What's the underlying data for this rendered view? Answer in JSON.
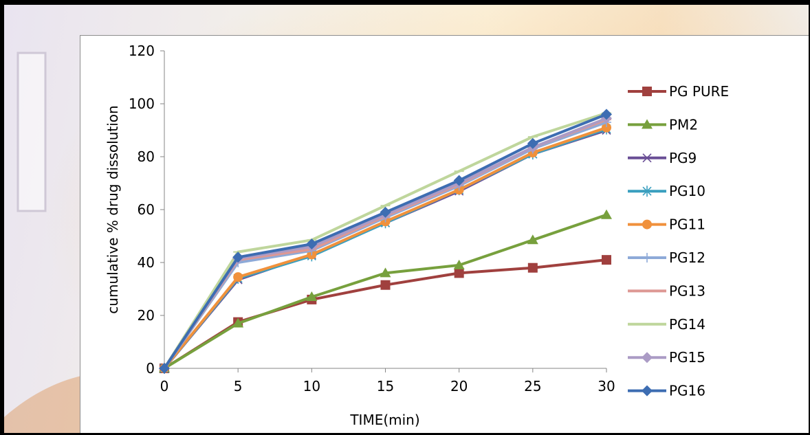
{
  "chart_data": {
    "type": "line",
    "title": "",
    "xlabel": "TIME(min)",
    "ylabel": "cumulative % drug dissolution",
    "x": [
      0,
      5,
      10,
      15,
      20,
      25,
      30
    ],
    "xlim": [
      0,
      30
    ],
    "ylim": [
      0,
      120
    ],
    "x_ticks": [
      0,
      5,
      10,
      15,
      20,
      25,
      30
    ],
    "y_ticks": [
      0,
      20,
      40,
      60,
      80,
      100,
      120
    ],
    "grid": false,
    "legend_position": "right",
    "series": [
      {
        "name": "PG PURE",
        "color": "#a0403e",
        "marker": "square",
        "values": [
          0,
          17.5,
          26,
          31.5,
          36,
          38,
          41
        ]
      },
      {
        "name": "PM2",
        "color": "#77a03d",
        "marker": "triangle",
        "values": [
          0,
          17,
          27,
          36,
          39,
          48.5,
          58
        ]
      },
      {
        "name": "PG9",
        "color": "#6a4f96",
        "marker": "x",
        "values": [
          0,
          33.5,
          43,
          55,
          67,
          81,
          90
        ]
      },
      {
        "name": "PG10",
        "color": "#3a9fbf",
        "marker": "star",
        "values": [
          0,
          34,
          42.5,
          55,
          67.5,
          81,
          90.5
        ]
      },
      {
        "name": "PG11",
        "color": "#f0913c",
        "marker": "circle",
        "values": [
          0,
          34.5,
          43,
          55.5,
          67.5,
          81.5,
          91
        ]
      },
      {
        "name": "PG12",
        "color": "#8eaad8",
        "marker": "plus",
        "values": [
          0,
          40,
          44.5,
          57,
          69,
          83,
          93
        ]
      },
      {
        "name": "PG13",
        "color": "#dd9894",
        "marker": "dash",
        "values": [
          0,
          41,
          45,
          57.5,
          69.5,
          83.5,
          94
        ]
      },
      {
        "name": "PG14",
        "color": "#bfd69c",
        "marker": "dash",
        "values": [
          0,
          44,
          48.5,
          61.5,
          74.5,
          87.5,
          96.5
        ]
      },
      {
        "name": "PG15",
        "color": "#ab9bc5",
        "marker": "diamond",
        "values": [
          0,
          41.5,
          46,
          58,
          70,
          83.5,
          94.5
        ]
      },
      {
        "name": "PG16",
        "color": "#3d6db2",
        "marker": "diamond",
        "values": [
          0,
          42,
          47,
          59,
          71,
          85,
          96
        ]
      }
    ]
  }
}
